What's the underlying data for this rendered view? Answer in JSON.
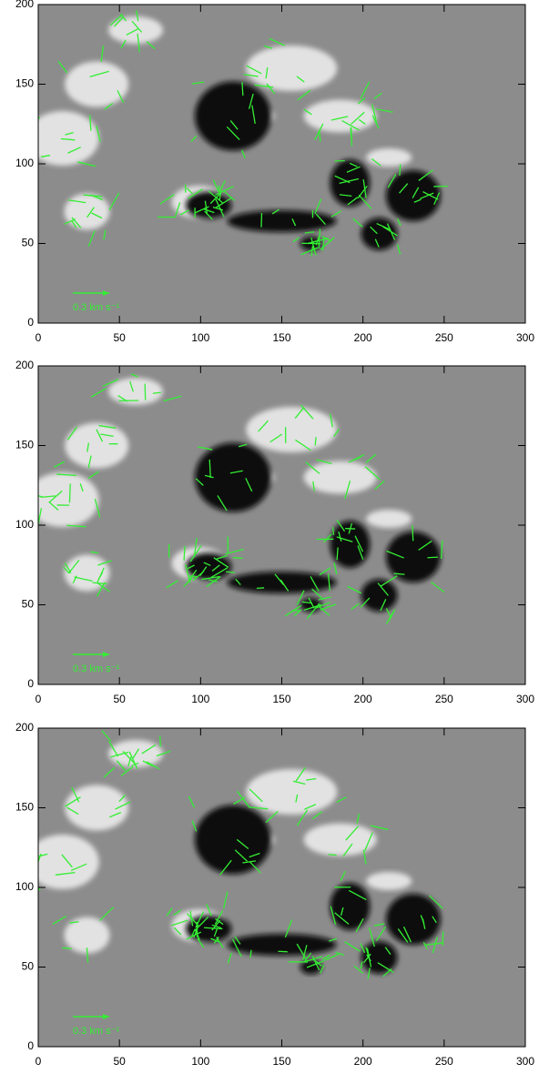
{
  "chart_data": [
    {
      "type": "image",
      "xlim": [
        0,
        300
      ],
      "ylim": [
        0,
        200
      ],
      "xticks": [
        0,
        50,
        100,
        150,
        200,
        250,
        300
      ],
      "yticks": [
        0,
        50,
        100,
        150,
        200
      ],
      "annotation": "0.3 km s⁻¹"
    },
    {
      "type": "image",
      "xlim": [
        0,
        300
      ],
      "ylim": [
        0,
        200
      ],
      "xticks": [
        0,
        50,
        100,
        150,
        200,
        250,
        300
      ],
      "yticks": [
        0,
        50,
        100,
        150,
        200
      ],
      "annotation": "0.3 km s⁻¹"
    },
    {
      "type": "image",
      "xlim": [
        0,
        300
      ],
      "ylim": [
        0,
        200
      ],
      "xticks": [
        0,
        50,
        100,
        150,
        200,
        250,
        300
      ],
      "yticks": [
        0,
        50,
        100,
        150,
        200
      ],
      "annotation": "0.3 km s⁻¹"
    }
  ]
}
